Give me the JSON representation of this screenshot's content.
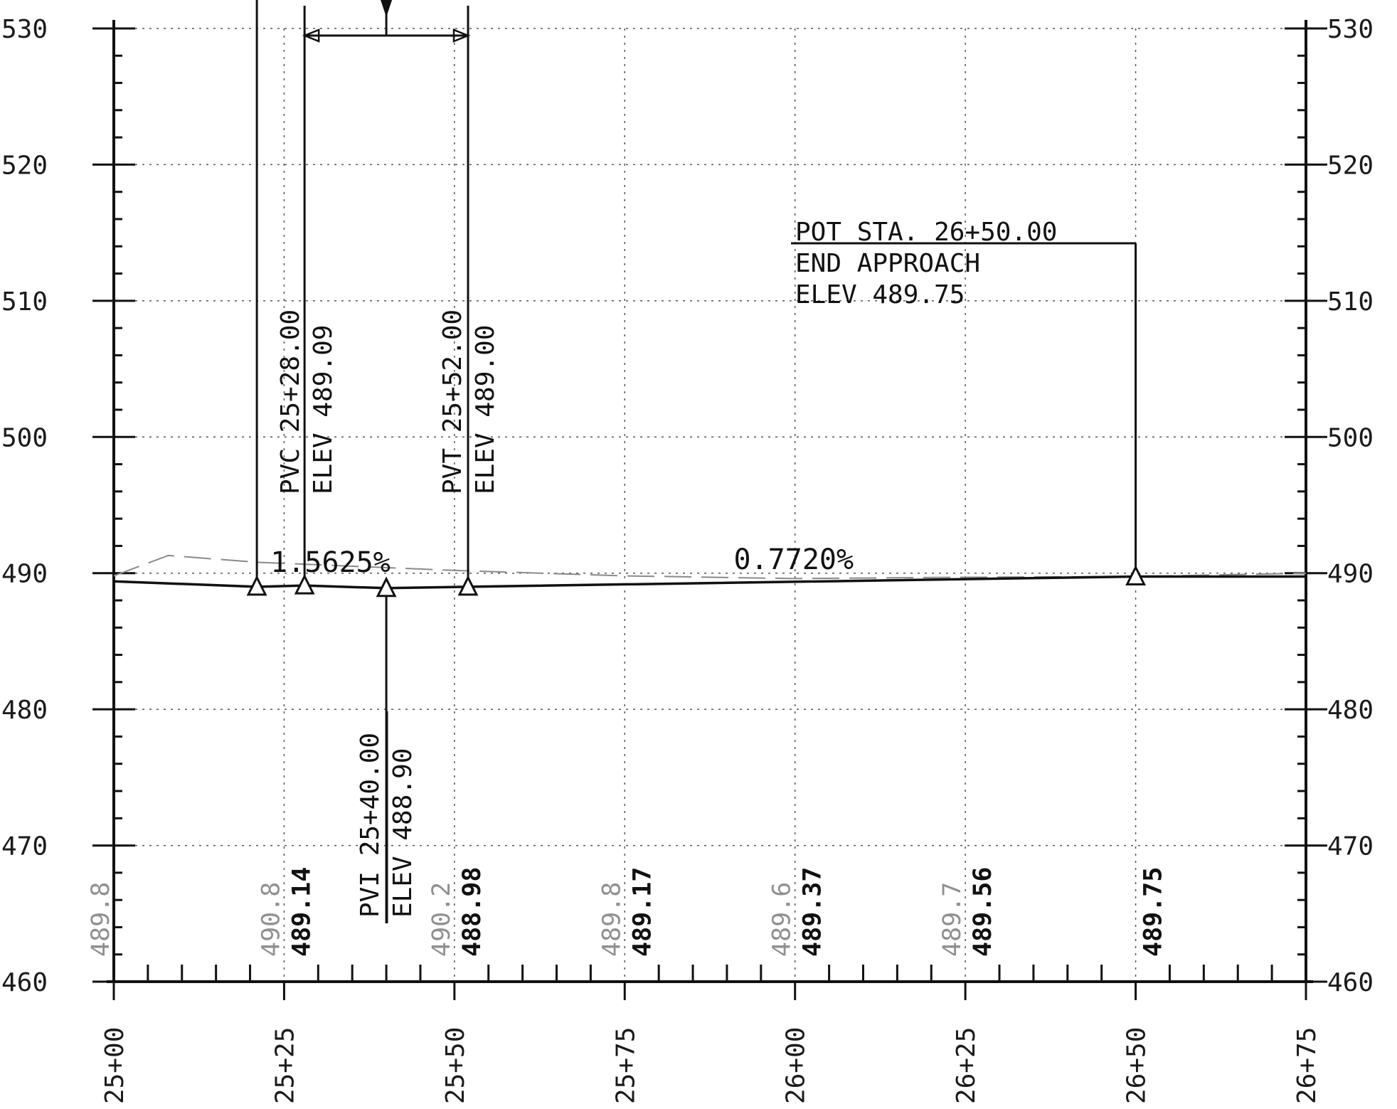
{
  "chart_data": {
    "type": "line",
    "x_axis": {
      "ticks": [
        "25+00",
        "25+25",
        "25+50",
        "25+75",
        "26+00",
        "26+25",
        "26+50",
        "26+75"
      ],
      "range_ft": [
        2500,
        2675
      ]
    },
    "y_axis": {
      "ticks": [
        460,
        470,
        480,
        490,
        500,
        510,
        520,
        530
      ],
      "range": [
        460,
        530
      ],
      "shown_both_sides": true
    },
    "grid": true,
    "proposed_profile": {
      "points": [
        {
          "station_ft": 2500,
          "elev": 489.4
        },
        {
          "station_ft": 2521,
          "elev": 489.0
        },
        {
          "station_ft": 2528,
          "elev": 489.09
        },
        {
          "station_ft": 2540,
          "elev": 488.9
        },
        {
          "station_ft": 2552,
          "elev": 489.0
        },
        {
          "station_ft": 2650,
          "elev": 489.75
        },
        {
          "station_ft": 2675,
          "elev": 489.75
        }
      ]
    },
    "existing_ground": {
      "points": [
        {
          "station_ft": 2500,
          "elev": 489.8
        },
        {
          "station_ft": 2508,
          "elev": 491.3
        },
        {
          "station_ft": 2521,
          "elev": 490.8
        },
        {
          "station_ft": 2550,
          "elev": 490.2
        },
        {
          "station_ft": 2575,
          "elev": 489.8
        },
        {
          "station_ft": 2600,
          "elev": 489.6
        },
        {
          "station_ft": 2625,
          "elev": 489.7
        },
        {
          "station_ft": 2650,
          "elev": 489.75
        },
        {
          "station_ft": 2675,
          "elev": 490.0
        }
      ]
    },
    "grades": [
      {
        "label": "1.5625%",
        "station_ft": 2523,
        "elev": 490.1
      },
      {
        "label": "0.7720%",
        "station_ft": 2591,
        "elev": 490.3
      }
    ],
    "points": [
      {
        "id": "start",
        "station_ft": 2521,
        "elev": 489.0
      },
      {
        "id": "pvc",
        "station_ft": 2528,
        "elev": 489.09
      },
      {
        "id": "pvi",
        "station_ft": 2540,
        "elev": 488.9
      },
      {
        "id": "pvt",
        "station_ft": 2552,
        "elev": 489.0
      },
      {
        "id": "pot",
        "station_ft": 2650,
        "elev": 489.75
      }
    ],
    "callouts": {
      "pvc": {
        "line1": "PVC 25+28.00",
        "line2": "ELEV 489.09"
      },
      "pvt": {
        "line1": "PVT 25+52.00",
        "line2": "ELEV 489.00"
      },
      "pvi": {
        "line1": "PVI 25+40.00",
        "line2": "ELEV 488.90"
      },
      "pot": {
        "line1": "POT STA. 26+50.00",
        "line2": "END APPROACH",
        "line3": "ELEV 489.75"
      }
    },
    "elevation_table": [
      {
        "station_ft": 2500,
        "existing": "489.8",
        "proposed": ""
      },
      {
        "station_ft": 2525,
        "existing": "490.8",
        "proposed": "489.14"
      },
      {
        "station_ft": 2550,
        "existing": "490.2",
        "proposed": "488.98"
      },
      {
        "station_ft": 2575,
        "existing": "489.8",
        "proposed": "489.17"
      },
      {
        "station_ft": 2600,
        "existing": "489.6",
        "proposed": "489.37"
      },
      {
        "station_ft": 2625,
        "existing": "489.7",
        "proposed": "489.56"
      },
      {
        "station_ft": 2650,
        "existing": "",
        "proposed": "489.75"
      }
    ]
  }
}
